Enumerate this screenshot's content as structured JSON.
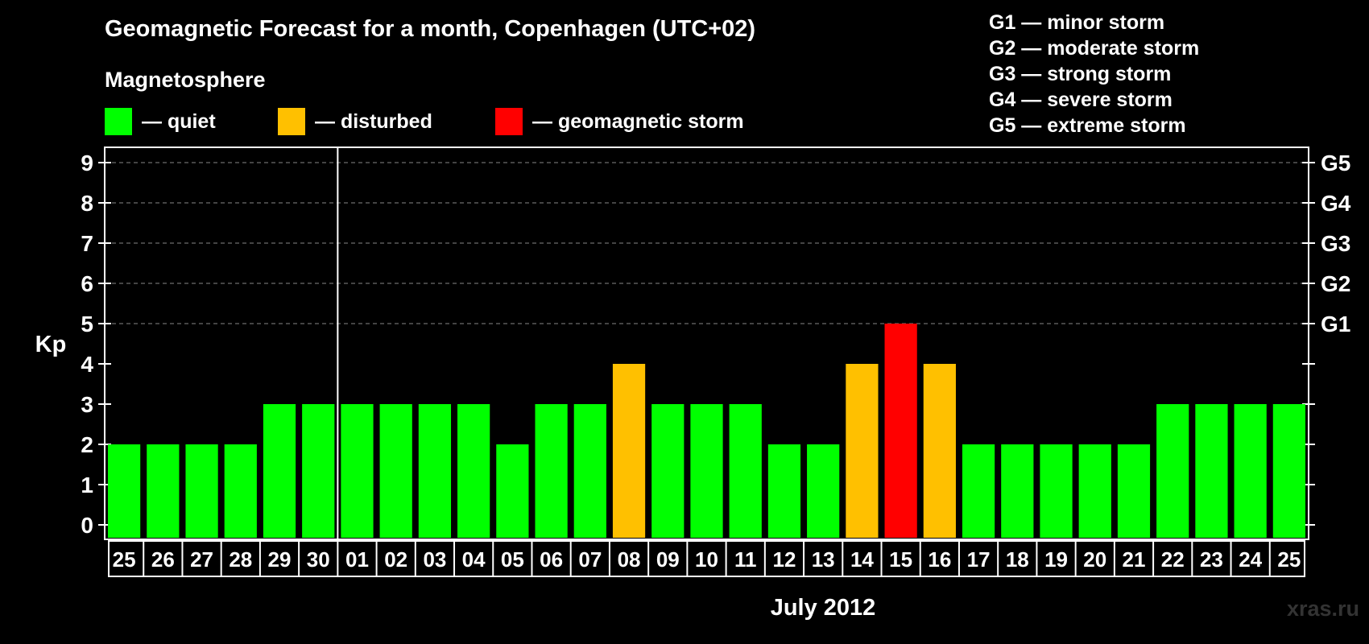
{
  "header": {
    "title": "Geomagnetic Forecast for a month, Copenhagen (UTC+02)",
    "subtitle": "Magnetosphere"
  },
  "legend": [
    {
      "label": "— quiet",
      "color": "#00ff00"
    },
    {
      "label": "— disturbed",
      "color": "#ffc000"
    },
    {
      "label": "— geomagnetic storm",
      "color": "#ff0000"
    }
  ],
  "storm_scale": [
    "G1 — minor storm",
    "G2 — moderate storm",
    "G3 — strong storm",
    "G4 — severe storm",
    "G5 — extreme storm"
  ],
  "watermark": "xras.ru",
  "colors": {
    "quiet": "#00ff00",
    "disturbed": "#ffc000",
    "storm": "#ff0000"
  },
  "chart_data": {
    "type": "bar",
    "title": "Geomagnetic Forecast for a month, Copenhagen (UTC+02)",
    "xlabel": "July 2012",
    "ylabel": "Kp",
    "ylim": [
      0,
      9
    ],
    "yticks": [
      0,
      1,
      2,
      3,
      4,
      5,
      6,
      7,
      8,
      9
    ],
    "right_axis": [
      {
        "value": 5,
        "label": "G1"
      },
      {
        "value": 6,
        "label": "G2"
      },
      {
        "value": 7,
        "label": "G3"
      },
      {
        "value": 8,
        "label": "G4"
      },
      {
        "value": 9,
        "label": "G5"
      }
    ],
    "categories": [
      "25",
      "26",
      "27",
      "28",
      "29",
      "30",
      "01",
      "02",
      "03",
      "04",
      "05",
      "06",
      "07",
      "08",
      "09",
      "10",
      "11",
      "12",
      "13",
      "14",
      "15",
      "16",
      "17",
      "18",
      "19",
      "20",
      "21",
      "22",
      "23",
      "24",
      "25"
    ],
    "values": [
      2,
      2,
      2,
      2,
      3,
      3,
      3,
      3,
      3,
      3,
      2,
      3,
      3,
      4,
      3,
      3,
      3,
      2,
      2,
      4,
      5,
      4,
      2,
      2,
      2,
      2,
      2,
      3,
      3,
      3,
      3
    ],
    "levels": [
      "quiet",
      "quiet",
      "quiet",
      "quiet",
      "quiet",
      "quiet",
      "quiet",
      "quiet",
      "quiet",
      "quiet",
      "quiet",
      "quiet",
      "quiet",
      "disturbed",
      "quiet",
      "quiet",
      "quiet",
      "quiet",
      "quiet",
      "disturbed",
      "storm",
      "disturbed",
      "quiet",
      "quiet",
      "quiet",
      "quiet",
      "quiet",
      "quiet",
      "quiet",
      "quiet",
      "quiet"
    ],
    "month_divider_after": "30",
    "grid": true
  }
}
